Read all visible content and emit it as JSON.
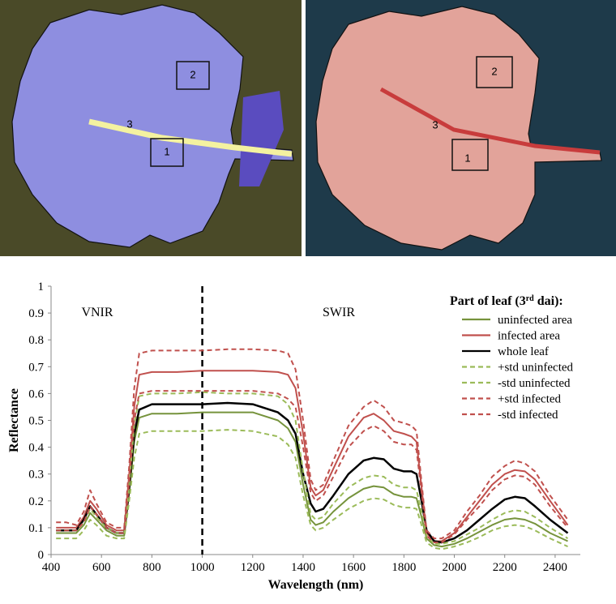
{
  "images": [
    {
      "labels": [
        "1",
        "2",
        "3"
      ]
    },
    {
      "labels": [
        "1",
        "2",
        "3"
      ]
    }
  ],
  "chart_data": {
    "type": "line",
    "x_label": "Wavelength (nm)",
    "y_label": "Reflectance",
    "annotations": [
      "VNIR",
      "SWIR"
    ],
    "vline": 1000,
    "legend_title": [
      "Part of leaf (3",
      "rd",
      " dai):"
    ],
    "xlim": [
      400,
      2500
    ],
    "ylim": [
      0,
      1
    ],
    "xticks": [
      400,
      600,
      800,
      1000,
      1200,
      1400,
      1600,
      1800,
      2000,
      2200,
      2400
    ],
    "yticks": [
      0,
      0.1,
      0.2,
      0.3,
      0.4,
      0.5,
      0.6,
      0.7,
      0.8,
      0.9,
      1
    ],
    "x": [
      420,
      460,
      500,
      530,
      555,
      580,
      620,
      660,
      690,
      710,
      730,
      750,
      800,
      900,
      1000,
      1100,
      1200,
      1300,
      1340,
      1370,
      1400,
      1430,
      1450,
      1480,
      1520,
      1580,
      1640,
      1680,
      1720,
      1760,
      1800,
      1830,
      1850,
      1870,
      1890,
      1920,
      1950,
      2000,
      2050,
      2100,
      2150,
      2200,
      2240,
      2280,
      2320,
      2380,
      2450
    ],
    "series": [
      {
        "name": "uninfected area",
        "color": "#76933c",
        "dashed": false,
        "values": [
          0.08,
          0.08,
          0.08,
          0.11,
          0.155,
          0.13,
          0.09,
          0.07,
          0.07,
          0.23,
          0.42,
          0.51,
          0.525,
          0.525,
          0.53,
          0.53,
          0.53,
          0.5,
          0.47,
          0.42,
          0.26,
          0.13,
          0.11,
          0.12,
          0.16,
          0.21,
          0.245,
          0.255,
          0.25,
          0.225,
          0.215,
          0.215,
          0.21,
          0.14,
          0.06,
          0.035,
          0.03,
          0.04,
          0.06,
          0.085,
          0.11,
          0.13,
          0.135,
          0.13,
          0.115,
          0.08,
          0.05
        ]
      },
      {
        "name": "infected area",
        "color": "#c0504d",
        "dashed": false,
        "values": [
          0.1,
          0.1,
          0.1,
          0.14,
          0.2,
          0.17,
          0.11,
          0.09,
          0.09,
          0.3,
          0.55,
          0.67,
          0.68,
          0.68,
          0.685,
          0.685,
          0.685,
          0.68,
          0.67,
          0.62,
          0.45,
          0.25,
          0.22,
          0.24,
          0.32,
          0.44,
          0.51,
          0.525,
          0.5,
          0.46,
          0.45,
          0.44,
          0.42,
          0.25,
          0.08,
          0.05,
          0.05,
          0.08,
          0.14,
          0.2,
          0.26,
          0.3,
          0.315,
          0.31,
          0.28,
          0.2,
          0.11
        ]
      },
      {
        "name": "whole leaf",
        "color": "#000000",
        "dashed": false,
        "values": [
          0.09,
          0.09,
          0.09,
          0.13,
          0.18,
          0.15,
          0.1,
          0.08,
          0.08,
          0.25,
          0.45,
          0.54,
          0.56,
          0.56,
          0.56,
          0.565,
          0.56,
          0.53,
          0.5,
          0.45,
          0.3,
          0.19,
          0.16,
          0.17,
          0.22,
          0.3,
          0.35,
          0.36,
          0.355,
          0.32,
          0.31,
          0.31,
          0.3,
          0.2,
          0.09,
          0.05,
          0.045,
          0.06,
          0.09,
          0.13,
          0.17,
          0.205,
          0.215,
          0.21,
          0.18,
          0.13,
          0.08
        ]
      },
      {
        "name": "+std uninfected",
        "color": "#9bbb59",
        "dashed": true,
        "values": [
          0.09,
          0.09,
          0.09,
          0.12,
          0.17,
          0.14,
          0.1,
          0.08,
          0.08,
          0.26,
          0.48,
          0.59,
          0.6,
          0.6,
          0.605,
          0.6,
          0.6,
          0.59,
          0.56,
          0.5,
          0.31,
          0.15,
          0.13,
          0.14,
          0.19,
          0.25,
          0.285,
          0.295,
          0.29,
          0.26,
          0.25,
          0.25,
          0.24,
          0.16,
          0.07,
          0.04,
          0.04,
          0.05,
          0.075,
          0.1,
          0.13,
          0.155,
          0.165,
          0.16,
          0.14,
          0.1,
          0.06
        ]
      },
      {
        "name": "-std uninfected",
        "color": "#9bbb59",
        "dashed": true,
        "values": [
          0.06,
          0.06,
          0.06,
          0.09,
          0.13,
          0.11,
          0.07,
          0.06,
          0.06,
          0.2,
          0.36,
          0.45,
          0.46,
          0.46,
          0.46,
          0.465,
          0.46,
          0.44,
          0.41,
          0.36,
          0.22,
          0.11,
          0.09,
          0.1,
          0.13,
          0.17,
          0.2,
          0.21,
          0.205,
          0.185,
          0.175,
          0.175,
          0.17,
          0.11,
          0.045,
          0.025,
          0.02,
          0.03,
          0.045,
          0.065,
          0.09,
          0.105,
          0.11,
          0.105,
          0.09,
          0.06,
          0.03
        ]
      },
      {
        "name": "+std infected",
        "color": "#c0504d",
        "dashed": true,
        "values": [
          0.12,
          0.12,
          0.11,
          0.16,
          0.24,
          0.19,
          0.12,
          0.1,
          0.1,
          0.33,
          0.62,
          0.75,
          0.76,
          0.76,
          0.76,
          0.765,
          0.765,
          0.76,
          0.75,
          0.69,
          0.5,
          0.28,
          0.24,
          0.26,
          0.35,
          0.48,
          0.55,
          0.575,
          0.55,
          0.5,
          0.49,
          0.48,
          0.46,
          0.27,
          0.09,
          0.06,
          0.06,
          0.09,
          0.16,
          0.22,
          0.29,
          0.33,
          0.35,
          0.34,
          0.31,
          0.22,
          0.13
        ]
      },
      {
        "name": "-std infected",
        "color": "#c0504d",
        "dashed": true,
        "values": [
          0.09,
          0.09,
          0.09,
          0.12,
          0.18,
          0.15,
          0.1,
          0.08,
          0.08,
          0.27,
          0.5,
          0.6,
          0.61,
          0.61,
          0.61,
          0.61,
          0.61,
          0.6,
          0.58,
          0.55,
          0.4,
          0.23,
          0.2,
          0.22,
          0.29,
          0.4,
          0.46,
          0.48,
          0.46,
          0.42,
          0.41,
          0.41,
          0.39,
          0.23,
          0.07,
          0.045,
          0.045,
          0.075,
          0.13,
          0.18,
          0.24,
          0.28,
          0.295,
          0.29,
          0.26,
          0.18,
          0.1
        ]
      }
    ]
  }
}
